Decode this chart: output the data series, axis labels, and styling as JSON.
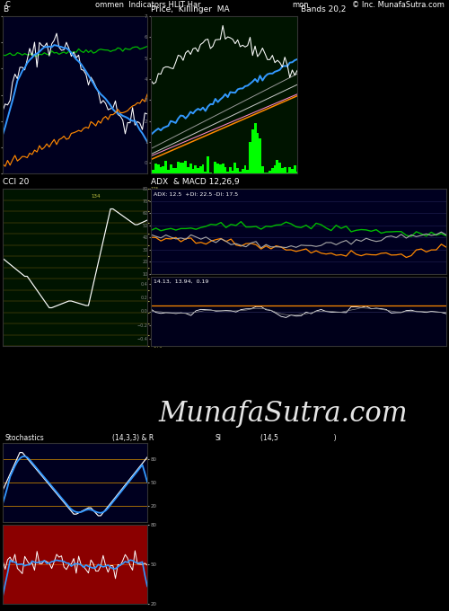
{
  "title_text": "ommen  Indicators HLIT Har",
  "title_left": "C",
  "title_right": "© Inc. MunafaSutra.com",
  "title_center2": "mon",
  "bg_color": "#000000",
  "panel1_bg": "#00001f",
  "panel2_bg": "#001400",
  "panel3_bg": "#001400",
  "panel4_bg": "#00001f",
  "panel5_bg": "#8b0000",
  "panel1_title": "B",
  "panel2_title": "Price,  Killinger  MA",
  "panel3_title": "Bands 20,2",
  "panel4_title": "CCI 20",
  "panel5_title": "ADX  & MACD 12,26,9",
  "watermark": "MunafaSutra.com",
  "stoch_title": "Stochastics",
  "stoch_params": "(14,3,3) & R",
  "si_title": "SI",
  "si_params": "(14,5                          )"
}
